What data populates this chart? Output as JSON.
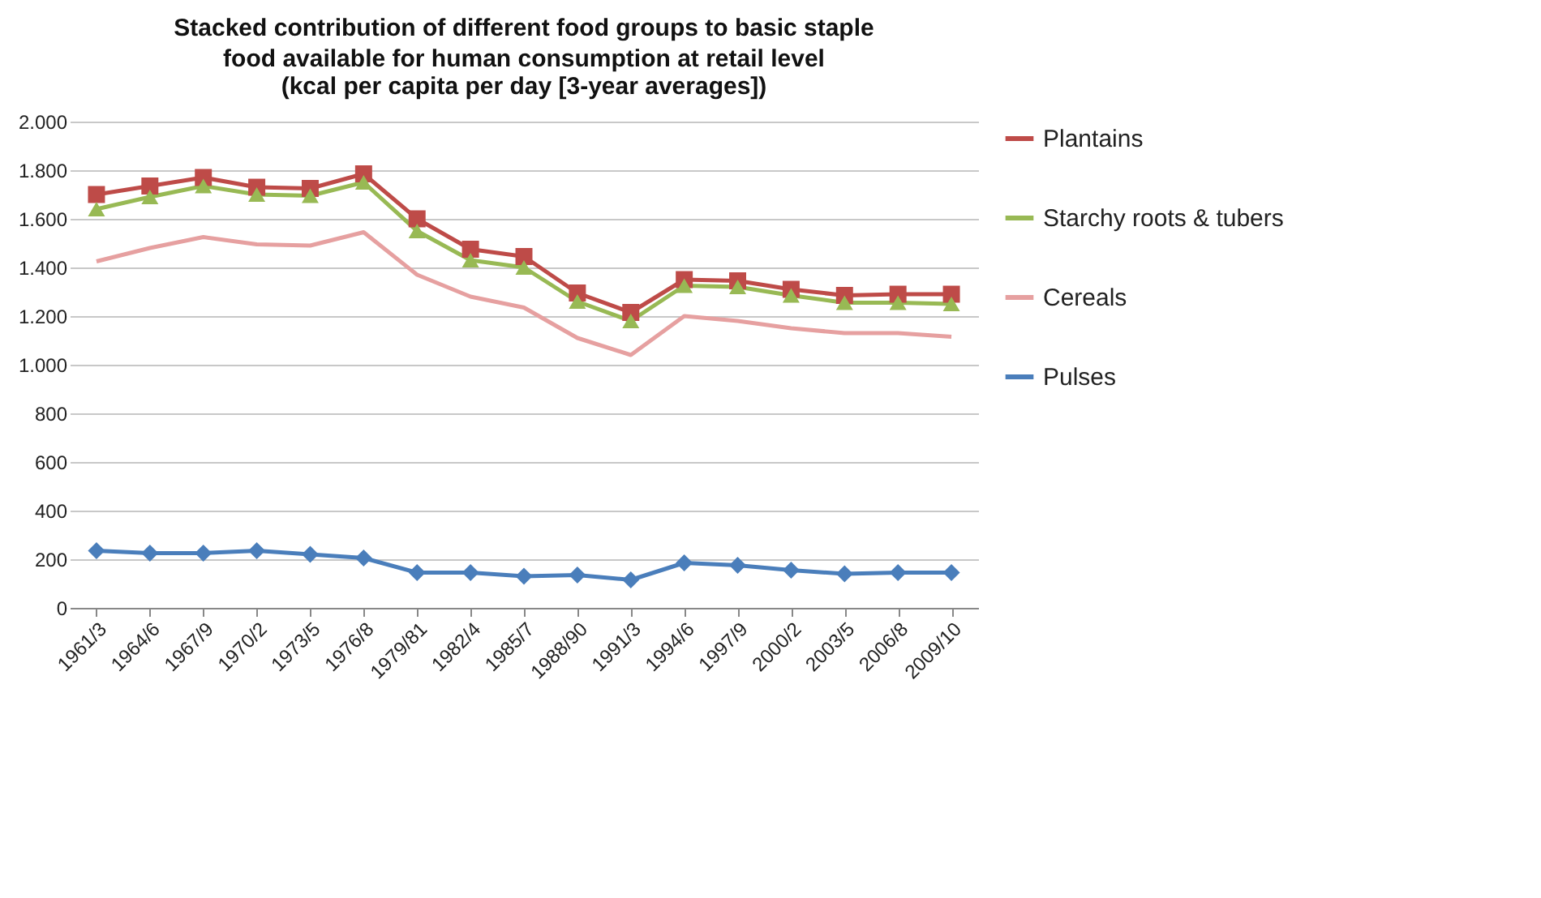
{
  "chart_data": {
    "type": "line",
    "title": "Stacked contribution of different food groups to basic staple food available for human consumption at retail level",
    "subtitle": "(kcal per capita per day [3-year averages])",
    "categories": [
      "1961/3",
      "1964/6",
      "1967/9",
      "1970/2",
      "1973/5",
      "1976/8",
      "1979/81",
      "1982/4",
      "1985/7",
      "1988/90",
      "1991/3",
      "1994/6",
      "1997/9",
      "2000/2",
      "2003/5",
      "2006/8",
      "2009/10"
    ],
    "series": [
      {
        "name": "Plantains",
        "color": "#be4b48",
        "marker": "square",
        "values": [
          1700,
          1735,
          1770,
          1730,
          1725,
          1785,
          1600,
          1475,
          1445,
          1295,
          1215,
          1350,
          1345,
          1310,
          1285,
          1290,
          1290
        ]
      },
      {
        "name": "Starchy roots & tubers",
        "color": "#98b954",
        "marker": "triangle",
        "values": [
          1640,
          1690,
          1735,
          1700,
          1695,
          1750,
          1550,
          1430,
          1400,
          1260,
          1180,
          1325,
          1320,
          1285,
          1255,
          1255,
          1250
        ]
      },
      {
        "name": "Cereals",
        "color": "#e6a0a0",
        "marker": "none",
        "values": [
          1425,
          1480,
          1525,
          1495,
          1490,
          1545,
          1370,
          1280,
          1235,
          1110,
          1040,
          1200,
          1180,
          1150,
          1130,
          1130,
          1115
        ]
      },
      {
        "name": "Pulses",
        "color": "#4a7ebb",
        "marker": "diamond",
        "values": [
          235,
          225,
          225,
          235,
          220,
          205,
          145,
          145,
          130,
          135,
          115,
          185,
          175,
          155,
          140,
          145,
          145
        ]
      }
    ],
    "ylim": [
      0,
      2000
    ],
    "yticks": [
      0,
      200,
      400,
      600,
      800,
      {
        "value": 1000,
        "label": "1.000"
      },
      {
        "value": 1200,
        "label": "1.200"
      },
      {
        "value": 1400,
        "label": "1.400"
      },
      {
        "value": 1600,
        "label": "1.600"
      },
      {
        "value": 1800,
        "label": "1.800"
      },
      {
        "value": 2000,
        "label": "2.000"
      }
    ],
    "grid": "y",
    "legend": "right"
  }
}
